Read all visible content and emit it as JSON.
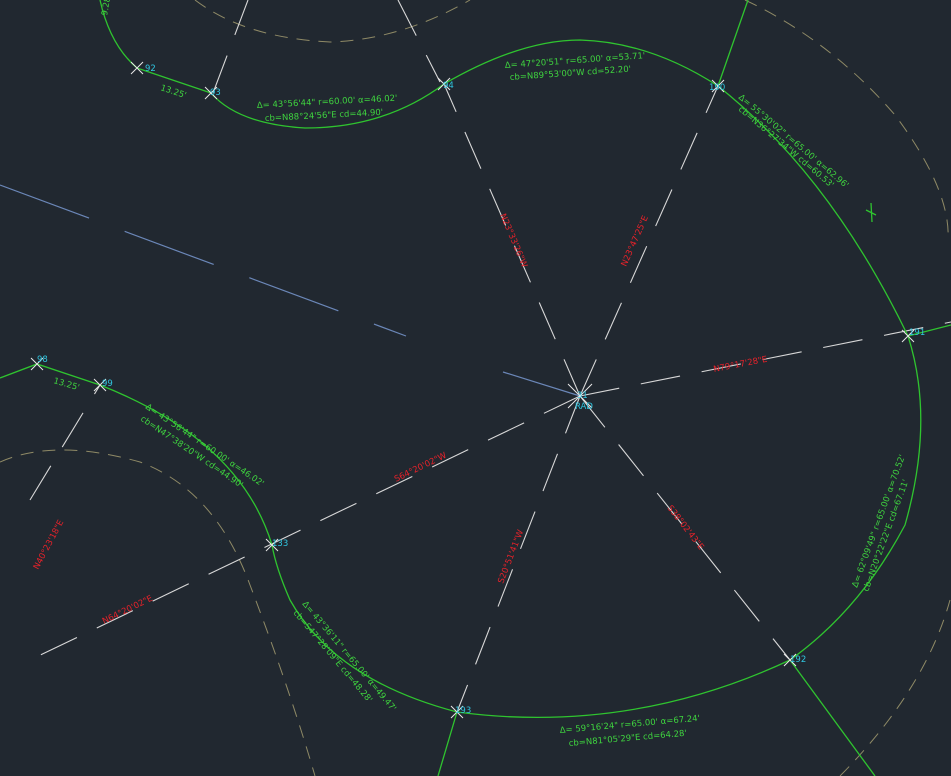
{
  "colors": {
    "background": "#212830",
    "curve": "#2fc42f",
    "text_green": "#3fd43f",
    "text_red": "#e8222a",
    "point": "#30c6e0",
    "radial": "#d8d8d8",
    "offset_dash": "#8f8a66",
    "blue_line": "#6b87b8"
  },
  "points": {
    "p92": "92",
    "p93": "93",
    "p94": "94",
    "p190": "190",
    "p191": "191",
    "p192": "192",
    "p193": "193",
    "p133": "133",
    "p99": "99",
    "p98": "98",
    "center_number": "31",
    "center_label": "RAD"
  },
  "chords": {
    "top_left": "13.25'",
    "mid_left": "13.25'",
    "corner_top": "9.28'"
  },
  "curves": {
    "top_left_delta": "Δ= 43°56'44\" r=60.00' α=46.02'",
    "top_left_chord": "cb=N88°24'56\"E cd=44.90'",
    "top_delta": "Δ= 47°20'51\" r=65.00' α=53.71'",
    "top_chord": "cb=N89°53'00\"W cd=52.20'",
    "right_top_delta": "Δ= 55°30'02\" r=65.00' α=62.96'",
    "right_top_chord": "cb=N36°27'34\"W cd=60.53'",
    "right_delta": "Δ= 62°09'49\" r=65.00' α=70.52'",
    "right_chord": "cb=N20°22'22\"E cd=67.11'",
    "bottom_delta": "Δ= 59°16'24\" r=65.00' α=67.24'",
    "bottom_chord": "cb=N81°05'29\"E cd=64.28'",
    "bottom_left_delta": "Δ= 43°36'11\" r=65.00' α=49.47'",
    "bottom_left_chord": "cb=S47°28'09\"E cd=48.28'",
    "left_delta": "Δ= 43°56'44\" r=60.00' α=46.02'",
    "left_chord": "cb=N47°38'20\"W cd=44.90'"
  },
  "bearings": {
    "b_nw": "N23°33'26\"W",
    "b_ne": "N23°47'25\"E",
    "b_e": "N79°17'28\"E",
    "b_sw": "S64°20'02\"W",
    "b_s": "S20°51'41\"W",
    "b_se": "S38°02'43\"E",
    "b_far_left": "N64°20'02\"E",
    "b_far_left_vert": "N40°23'18\"E"
  }
}
